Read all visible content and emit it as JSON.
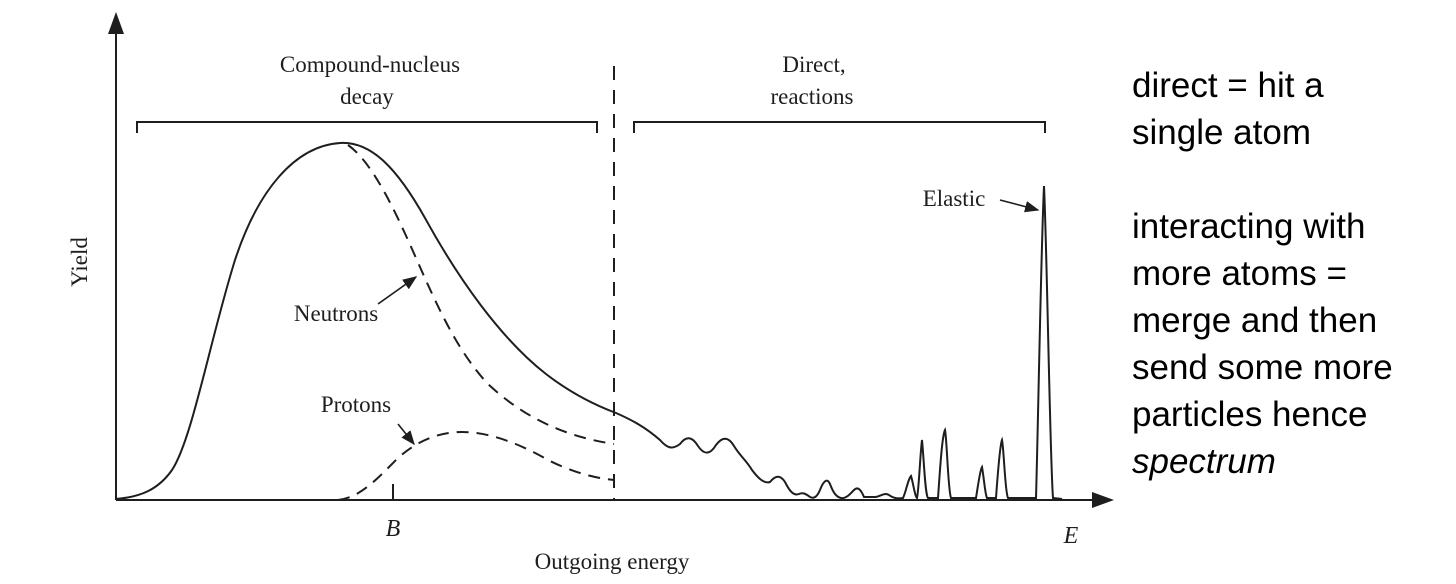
{
  "figure": {
    "y_axis_label": "Yield",
    "x_axis_label": "Outgoing energy",
    "x_tick_B": "B",
    "x_end_label": "E",
    "region_left_line1": "Compound-nucleus",
    "region_left_line2": "decay",
    "region_right_line1": "Direct,",
    "region_right_line2": "reactions",
    "label_neutrons": "Neutrons",
    "label_protons": "Protons",
    "label_elastic": "Elastic"
  },
  "notes": {
    "line1": "direct = hit a",
    "line2": "single atom",
    "line3": "interacting with",
    "line4": "more atoms =",
    "line5": "merge and then",
    "line6": "send some more",
    "line7": "particles hence",
    "line8": "spectrum"
  },
  "colors": {
    "ink": "#1e1e1e",
    "background": "#ffffff"
  }
}
